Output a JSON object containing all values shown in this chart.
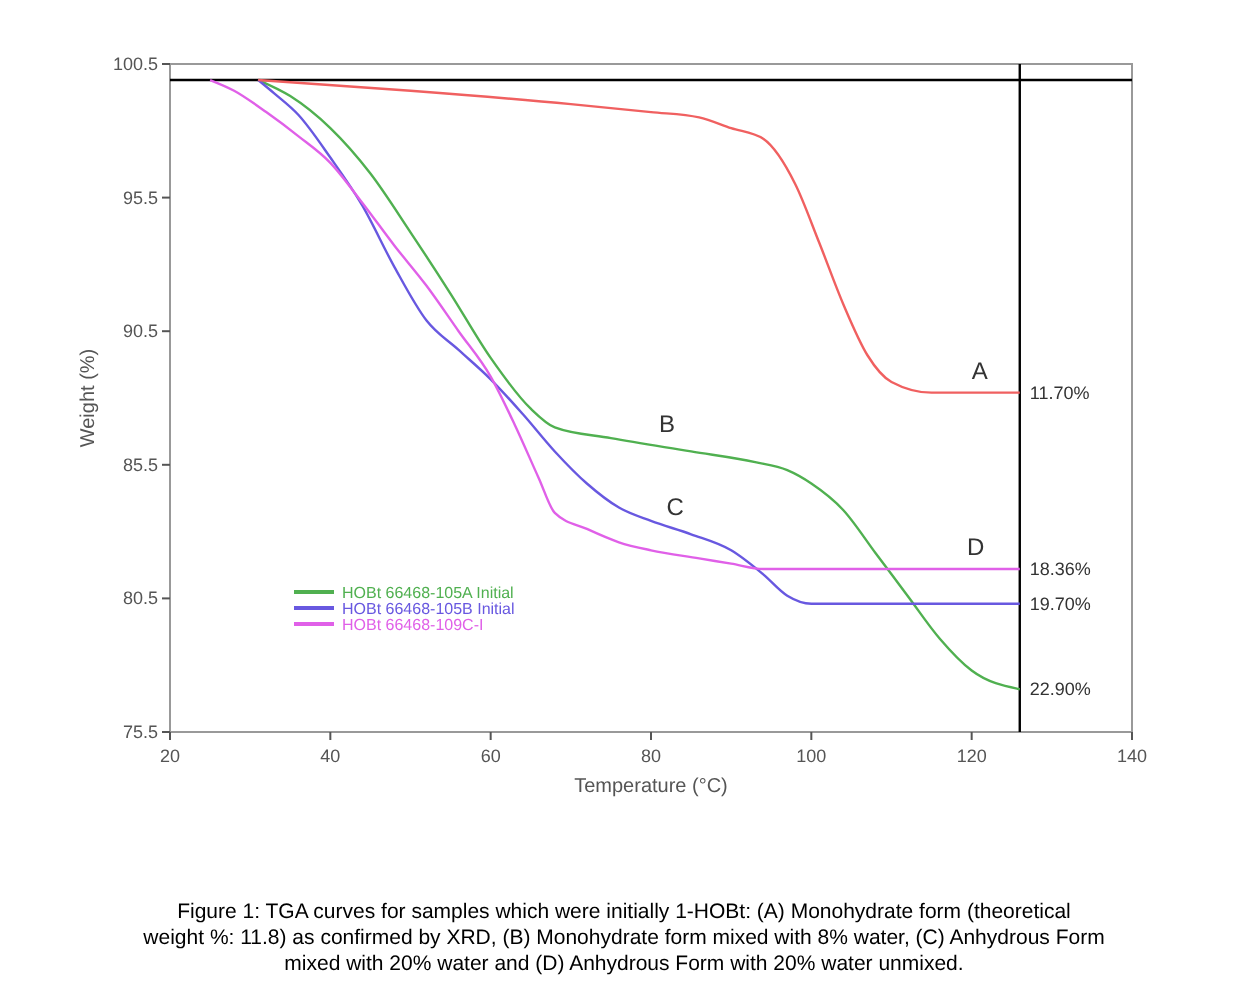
{
  "chart_data": {
    "type": "line",
    "xlabel": "Temperature (°C)",
    "ylabel": "Weight (%)",
    "xlim": [
      20,
      140
    ],
    "xticks": [
      20,
      40,
      60,
      80,
      100,
      120,
      140
    ],
    "ylim": [
      75.5,
      100.5
    ],
    "yticks": [
      75.5,
      80.5,
      85.5,
      90.5,
      95.5,
      100.5
    ],
    "grid": false,
    "legend": "bottom left",
    "marker": "none",
    "line_style": "solid",
    "series": [
      {
        "name": "HOBt 66468-105A Initial",
        "color": "#50b050",
        "x": [
          31,
          35,
          40,
          45,
          50,
          55,
          60,
          65,
          68,
          75,
          85,
          93,
          97,
          100,
          104,
          108,
          112,
          116,
          120,
          126
        ],
        "values": [
          99.9,
          99.3,
          98.1,
          96.4,
          94.2,
          91.9,
          89.5,
          87.6,
          86.9,
          86.5,
          86.0,
          85.6,
          85.3,
          84.8,
          83.8,
          82.2,
          80.6,
          79.0,
          77.8,
          77.1
        ]
      },
      {
        "name": "HOBt 66468-105B Initial",
        "color": "#6858e0",
        "x": [
          31,
          33,
          36,
          40,
          44,
          48,
          52,
          56,
          60,
          64,
          68,
          72,
          76,
          80,
          85,
          90,
          94,
          97,
          100,
          126
        ],
        "values": [
          99.9,
          99.4,
          98.6,
          97.0,
          95.2,
          92.9,
          90.9,
          89.8,
          88.7,
          87.4,
          86.0,
          84.8,
          83.9,
          83.4,
          82.9,
          82.3,
          81.4,
          80.6,
          80.3,
          80.3
        ]
      },
      {
        "name": "HOBt 66468-109C-I",
        "color": "#e060e8",
        "x": [
          25,
          28,
          32,
          36,
          40,
          44,
          48,
          52,
          56,
          60,
          63,
          66,
          68,
          72,
          76,
          80,
          86,
          90,
          94,
          126
        ],
        "values": [
          99.9,
          99.5,
          98.7,
          97.8,
          96.8,
          95.3,
          93.7,
          92.2,
          90.5,
          88.8,
          87.0,
          85.0,
          83.7,
          83.1,
          82.6,
          82.3,
          82.0,
          81.8,
          81.6,
          81.6
        ]
      },
      {
        "color": "#f06060",
        "x": [
          31,
          50,
          70,
          80,
          86,
          90,
          94,
          98,
          101,
          104,
          107,
          110,
          115,
          126
        ],
        "values": [
          99.9,
          99.5,
          99.0,
          98.7,
          98.5,
          98.1,
          97.7,
          96.0,
          93.8,
          91.5,
          89.6,
          88.6,
          88.2,
          88.2
        ]
      }
    ],
    "ref_lines": [
      {
        "axis": "y",
        "value": 99.9,
        "color": "#000000"
      },
      {
        "axis": "x",
        "value": 126,
        "color": "#000000"
      }
    ],
    "annotations": [
      {
        "text": "A",
        "x": 121,
        "y": 88.2
      },
      {
        "text": "B",
        "x": 82,
        "y": 86.2
      },
      {
        "text": "C",
        "x": 83,
        "y": 83.1
      },
      {
        "text": "D",
        "x": 120.5,
        "y": 81.6
      },
      {
        "text": "11.70%",
        "x": 126,
        "y": 88.2
      },
      {
        "text": "18.36%",
        "x": 126,
        "y": 81.6
      },
      {
        "text": "19.70%",
        "x": 126,
        "y": 80.3
      },
      {
        "text": "22.90%",
        "x": 126,
        "y": 77.1
      },
      "Figure 1:  TGA curves for samples which were initially 1-HOBt: (A) Monohydrate form (theoretical weight %: 11.8) as confirmed by XRD, (B) Monohydrate form mixed with 8% water, (C) Anhydrous Form mixed with 20% water and (D) Anhydrous Form with 20% water unmixed."
    ]
  }
}
